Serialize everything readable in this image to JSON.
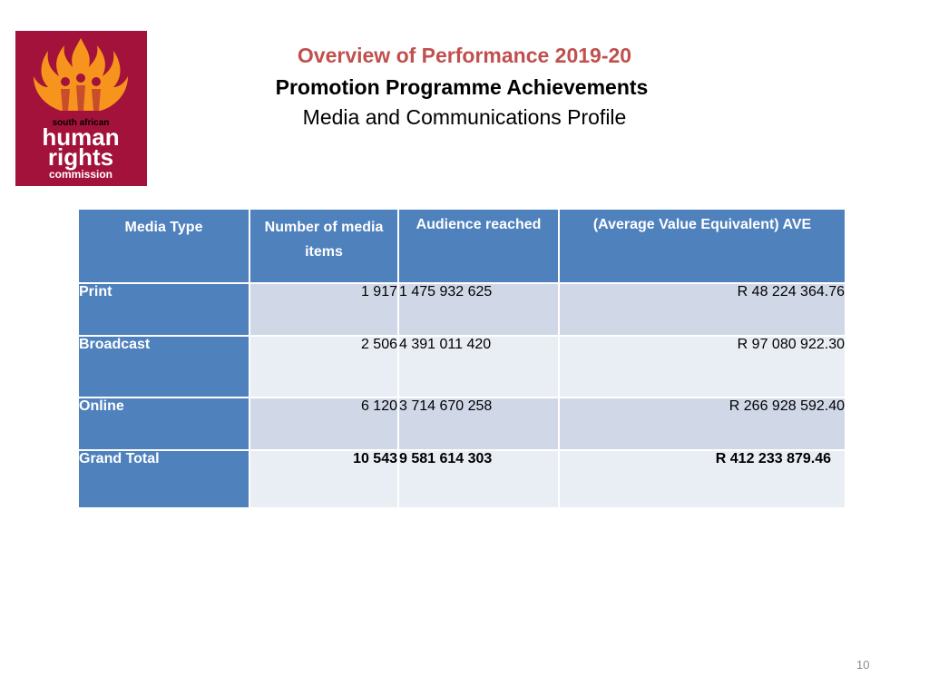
{
  "logo": {
    "line1": "south african",
    "line2": "human",
    "line3": "rights",
    "line4": "commission",
    "bg_color": "#a3123a",
    "flame_color": "#f7941d"
  },
  "title": {
    "line1": "Overview of Performance 2019-20",
    "line2": "Promotion Programme Achievements",
    "line3": "Media and Communications Profile"
  },
  "table": {
    "headers": [
      "Media Type",
      "Number of media items",
      "Audience reached",
      "(Average Value Equivalent) AVE"
    ],
    "rows": [
      {
        "type": "Print",
        "items": "1 917",
        "audience": "1 475 932 625",
        "ave": "R 48 224 364.76"
      },
      {
        "type": "Broadcast",
        "items": "2 506",
        "audience": "4 391 011 420",
        "ave": "R 97 080 922.30"
      },
      {
        "type": "Online",
        "items": "6 120",
        "audience": "3 714 670 258",
        "ave": "R 266 928 592.40"
      },
      {
        "type": "Grand Total",
        "items": "10 543",
        "audience": "9 581 614 303",
        "ave": "R 412 233 879.46"
      }
    ]
  },
  "page_number": "10"
}
